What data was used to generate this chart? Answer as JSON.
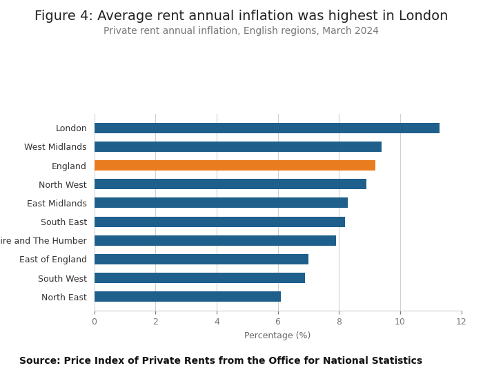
{
  "title": "Figure 4: Average rent annual inflation was highest in London",
  "subtitle": "Private rent annual inflation, English regions, March 2024",
  "source": "Source: Price Index of Private Rents from the Office for National Statistics",
  "categories": [
    "North East",
    "South West",
    "East of England",
    "Yorkshire and The Humber",
    "South East",
    "East Midlands",
    "North West",
    "England",
    "West Midlands",
    "London"
  ],
  "values": [
    6.1,
    6.9,
    7.0,
    7.9,
    8.2,
    8.3,
    8.9,
    9.2,
    9.4,
    11.3
  ],
  "bar_colors": [
    "#1e5f8c",
    "#1e5f8c",
    "#1e5f8c",
    "#1e5f8c",
    "#1e5f8c",
    "#1e5f8c",
    "#1e5f8c",
    "#e87c1e",
    "#1e5f8c",
    "#1e5f8c"
  ],
  "xlim": [
    0,
    12
  ],
  "xticks": [
    0,
    2,
    4,
    6,
    8,
    10,
    12
  ],
  "xlabel": "Percentage (%)",
  "background_color": "#ffffff",
  "title_fontsize": 14,
  "subtitle_fontsize": 10,
  "source_fontsize": 10,
  "bar_height": 0.55
}
